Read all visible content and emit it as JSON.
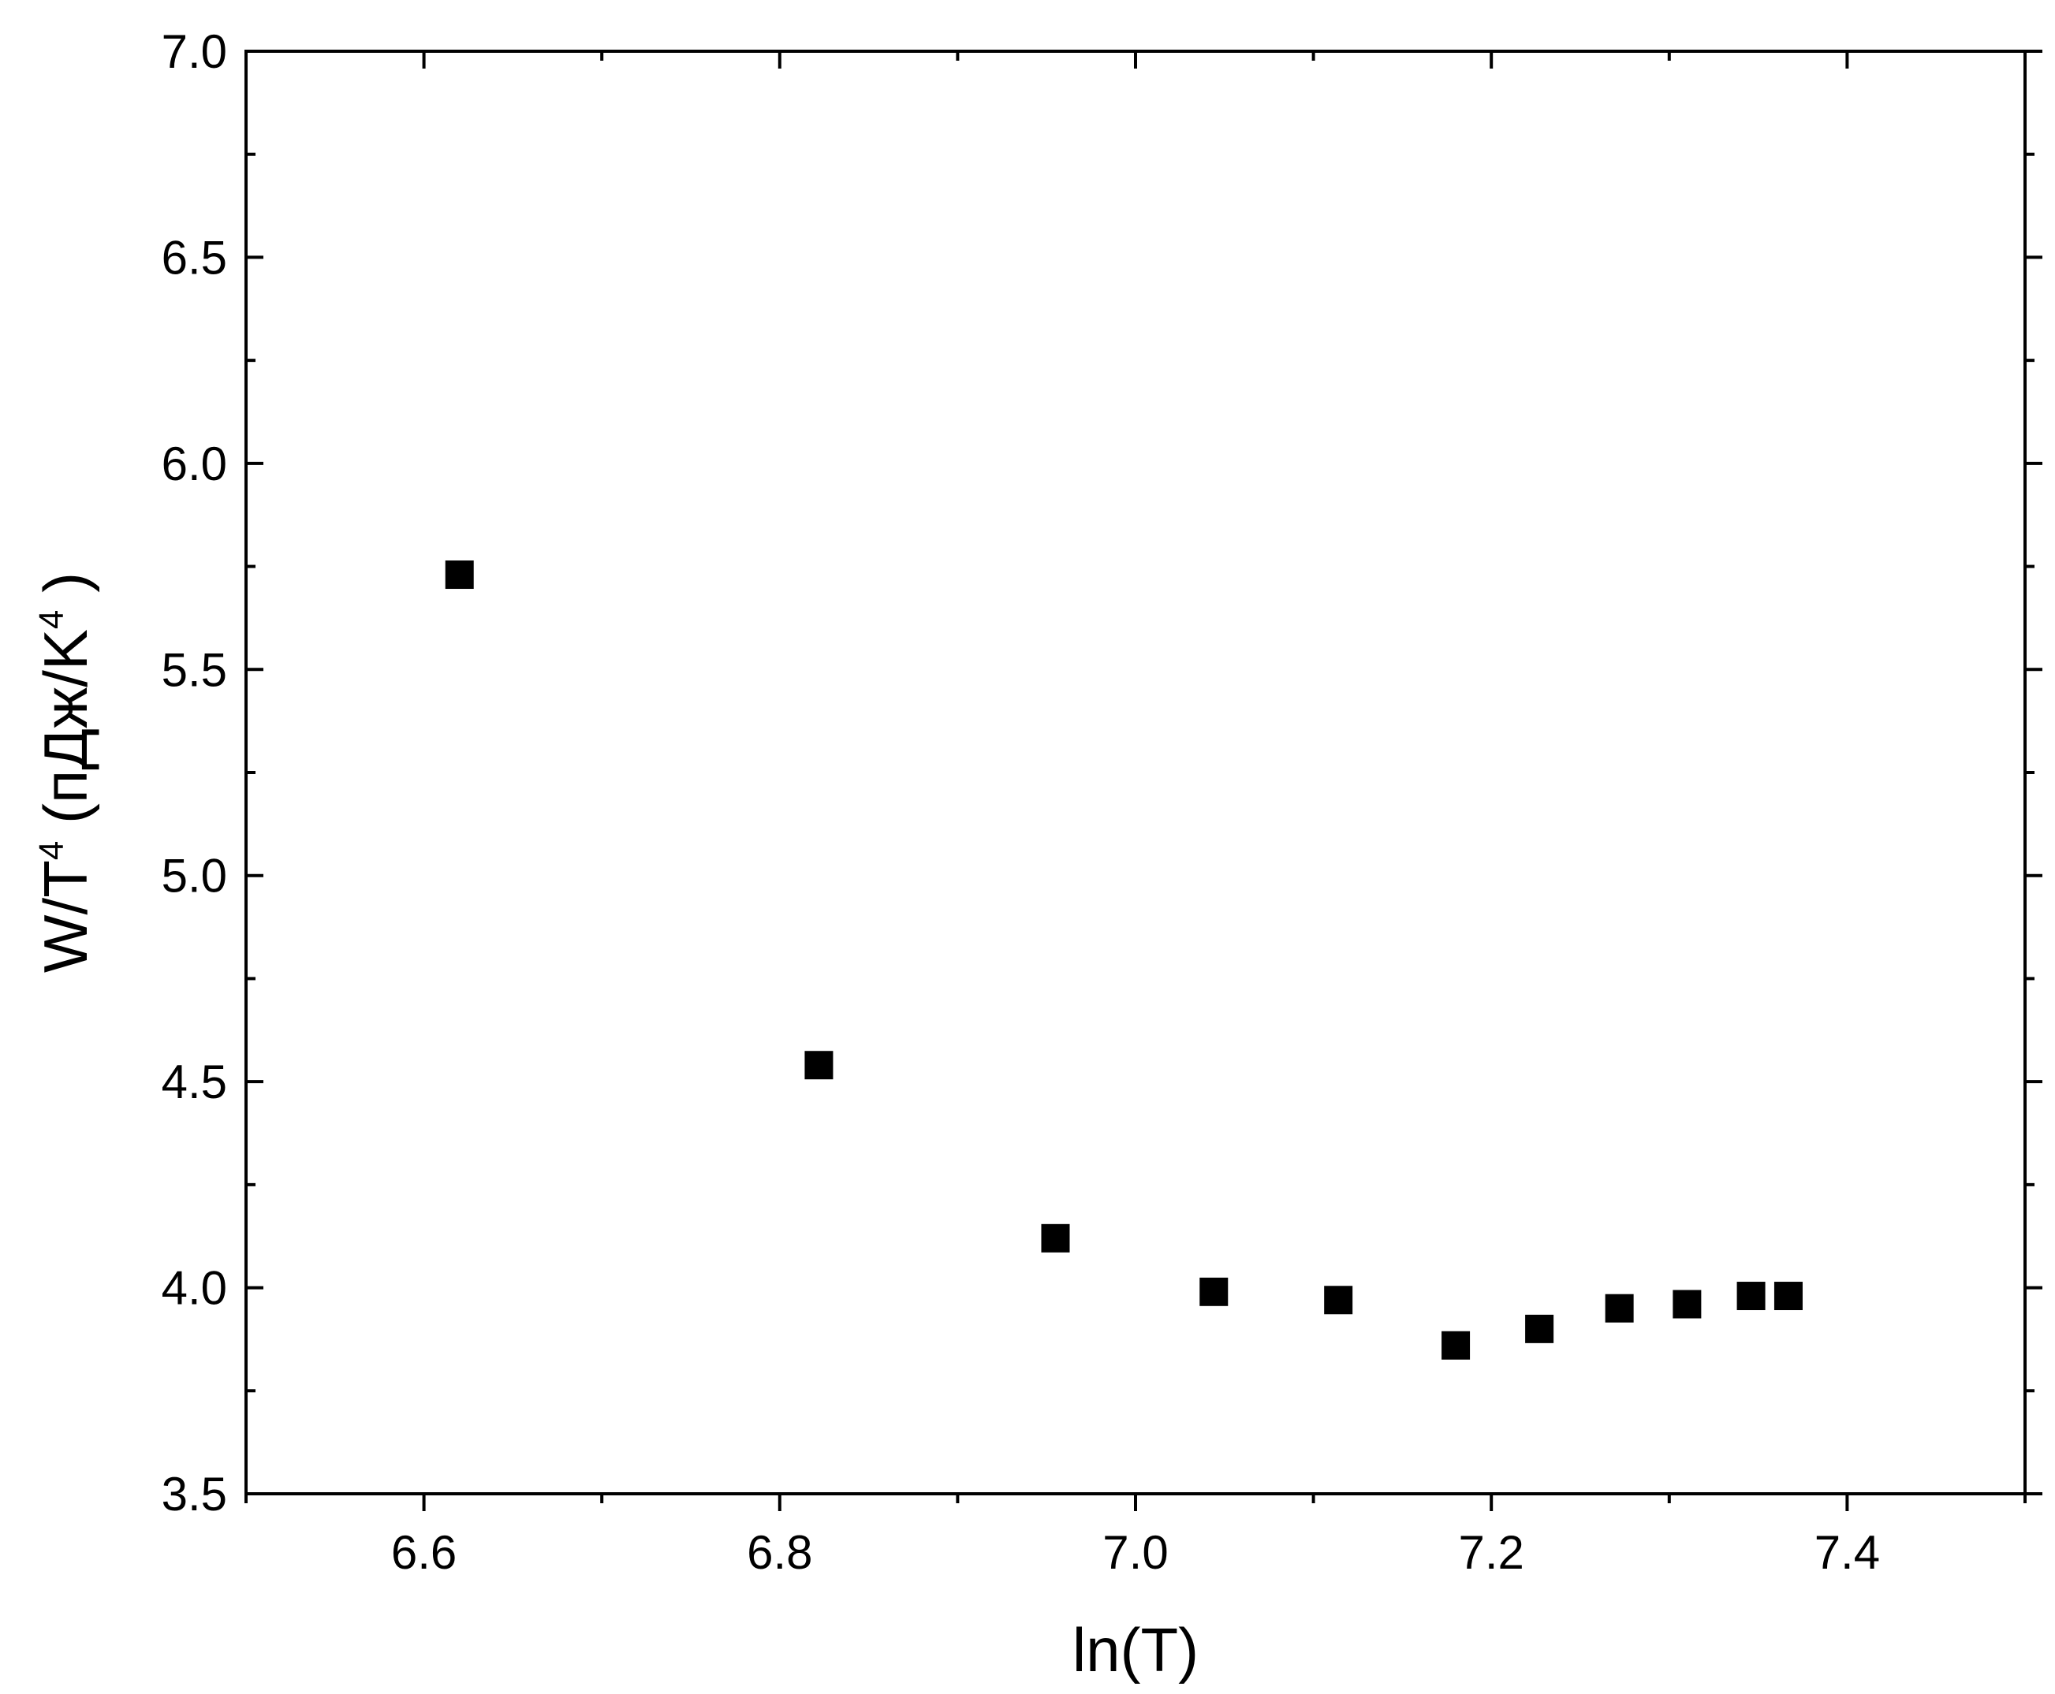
{
  "chart_data": {
    "type": "scatter",
    "marker": "square",
    "marker_color": "#000000",
    "xlabel": "ln(T)",
    "ylabel": {
      "base": "W/T",
      "sup1": "4",
      "mid": " (пДж/K",
      "sup2": "4",
      "end": " )"
    },
    "xlim": [
      6.5,
      7.5
    ],
    "ylim": [
      3.5,
      7.0
    ],
    "x_ticks": [
      6.6,
      6.8,
      7.0,
      7.2,
      7.4
    ],
    "x_tick_labels": [
      "6.6",
      "6.8",
      "7.0",
      "7.2",
      "7.4"
    ],
    "y_ticks": [
      3.5,
      4.0,
      4.5,
      5.0,
      5.5,
      6.0,
      6.5,
      7.0
    ],
    "y_tick_labels": [
      "3.5",
      "4.0",
      "4.5",
      "5.0",
      "5.5",
      "6.0",
      "6.5",
      "7.0"
    ],
    "x_minor_step": 0.1,
    "y_minor_step": 0.25,
    "grid": false,
    "points": [
      {
        "x": 6.62,
        "y": 5.73
      },
      {
        "x": 6.822,
        "y": 4.54
      },
      {
        "x": 6.955,
        "y": 4.12
      },
      {
        "x": 7.044,
        "y": 3.99
      },
      {
        "x": 7.114,
        "y": 3.97
      },
      {
        "x": 7.18,
        "y": 3.86
      },
      {
        "x": 7.227,
        "y": 3.9
      },
      {
        "x": 7.272,
        "y": 3.95
      },
      {
        "x": 7.31,
        "y": 3.96
      },
      {
        "x": 7.346,
        "y": 3.98
      },
      {
        "x": 7.367,
        "y": 3.98
      }
    ]
  }
}
